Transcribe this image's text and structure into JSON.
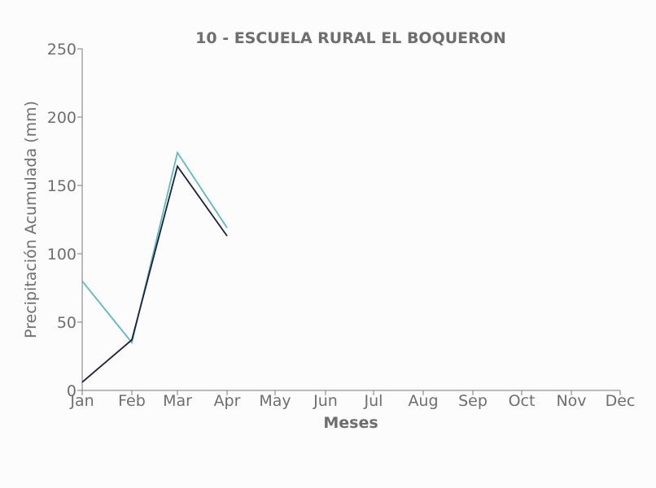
{
  "chart_data": {
    "type": "line",
    "title": "10 - ESCUELA RURAL EL BOQUERON",
    "xlabel": "Meses",
    "ylabel": "Precipitación Acumulada (mm)",
    "categories": [
      "Jan",
      "Feb",
      "Mar",
      "Apr",
      "May",
      "Jun",
      "Jul",
      "Aug",
      "Sep",
      "Oct",
      "Nov",
      "Dec"
    ],
    "ylim": [
      0,
      250
    ],
    "yticks": [
      0,
      50,
      100,
      150,
      200,
      250
    ],
    "grid": false,
    "legend": "none",
    "series": [
      {
        "color": "#5bb8c4",
        "values": [
          80,
          35,
          174,
          119,
          null,
          null,
          null,
          null,
          null,
          null,
          null,
          null
        ]
      },
      {
        "color": "#1f1f3a",
        "values": [
          6,
          37,
          164,
          113,
          null,
          null,
          null,
          null,
          null,
          null,
          null,
          null
        ]
      }
    ]
  }
}
